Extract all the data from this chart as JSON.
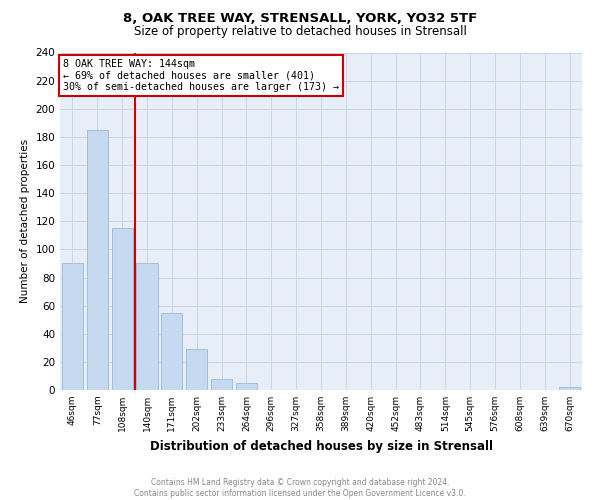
{
  "title": "8, OAK TREE WAY, STRENSALL, YORK, YO32 5TF",
  "subtitle": "Size of property relative to detached houses in Strensall",
  "xlabel": "Distribution of detached houses by size in Strensall",
  "ylabel": "Number of detached properties",
  "bar_labels": [
    "46sqm",
    "77sqm",
    "108sqm",
    "140sqm",
    "171sqm",
    "202sqm",
    "233sqm",
    "264sqm",
    "296sqm",
    "327sqm",
    "358sqm",
    "389sqm",
    "420sqm",
    "452sqm",
    "483sqm",
    "514sqm",
    "545sqm",
    "576sqm",
    "608sqm",
    "639sqm",
    "670sqm"
  ],
  "bar_values": [
    90,
    185,
    115,
    90,
    55,
    29,
    8,
    5,
    0,
    0,
    0,
    0,
    0,
    0,
    0,
    0,
    0,
    0,
    0,
    0,
    2
  ],
  "bar_color": "#c5d9f1",
  "bar_edge_color": "#9ab8d8",
  "vline_index": 3,
  "vline_color": "#cc0000",
  "annotation_title": "8 OAK TREE WAY: 144sqm",
  "annotation_line1": "← 69% of detached houses are smaller (401)",
  "annotation_line2": "30% of semi-detached houses are larger (173) →",
  "annotation_box_color": "#cc0000",
  "ylim": [
    0,
    240
  ],
  "yticks": [
    0,
    20,
    40,
    60,
    80,
    100,
    120,
    140,
    160,
    180,
    200,
    220,
    240
  ],
  "footer1": "Contains HM Land Registry data © Crown copyright and database right 2024.",
  "footer2": "Contains public sector information licensed under the Open Government Licence v3.0.",
  "background_color": "#ffffff",
  "plot_bg_color": "#e8eef7",
  "grid_color": "#c8d4e8",
  "title_fontsize": 9.5,
  "subtitle_fontsize": 8.5,
  "ylabel_fontsize": 7.5,
  "xlabel_fontsize": 8.5
}
